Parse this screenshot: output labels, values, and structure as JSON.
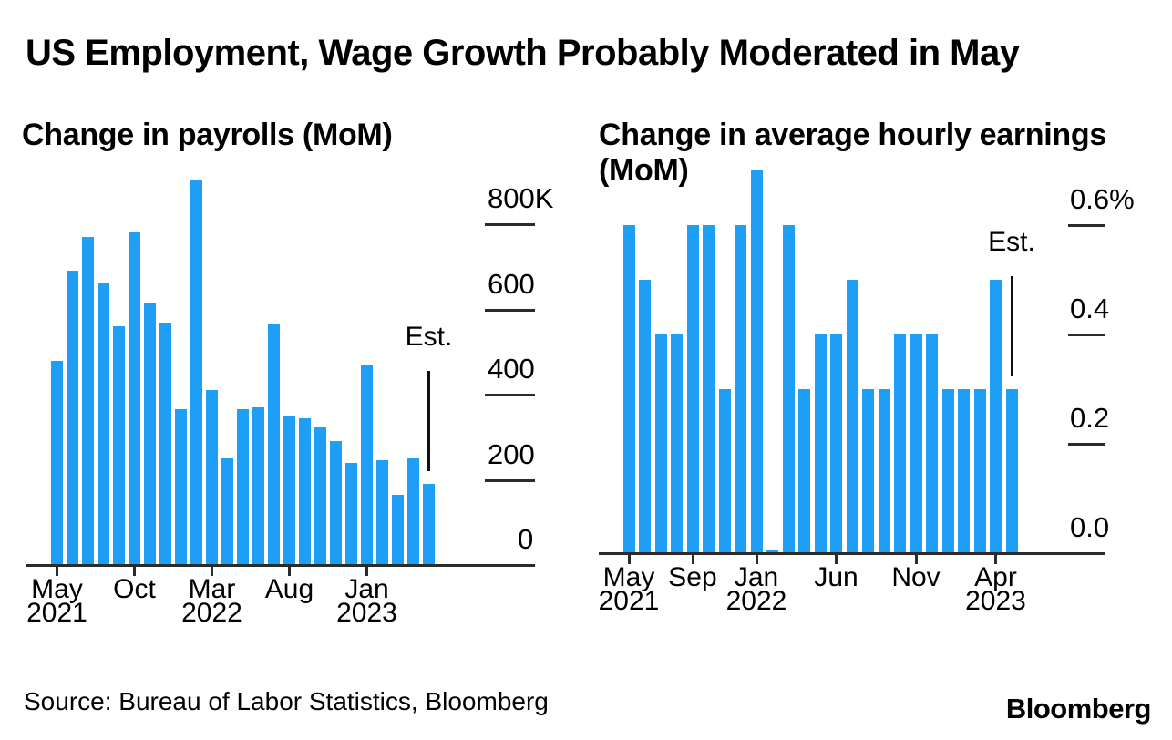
{
  "page": {
    "title": "US Employment, Wage Growth Probably Moderated in May",
    "source": "Source: Bureau of Labor Statistics, Bloomberg",
    "brand": "Bloomberg"
  },
  "colors": {
    "bar": "#1e9ef4",
    "axis": "#2b2b2b",
    "text": "#000000"
  },
  "chart_data": [
    {
      "type": "bar",
      "title": "Change in payrolls (MoM)",
      "unit": "thousands of jobs",
      "ylabel": "",
      "xlabel": "",
      "ylim": [
        0,
        800
      ],
      "grid": false,
      "legend_position": "none",
      "est_label": "Est.",
      "est_index": 24,
      "categories": [
        "May 2021",
        "Jun 2021",
        "Jul 2021",
        "Aug 2021",
        "Sep 2021",
        "Oct 2021",
        "Nov 2021",
        "Dec 2021",
        "Jan 2022",
        "Feb 2022",
        "Mar 2022",
        "Apr 2022",
        "May 2022",
        "Jun 2022",
        "Jul 2022",
        "Aug 2022",
        "Sep 2022",
        "Oct 2022",
        "Nov 2022",
        "Dec 2022",
        "Jan 2023",
        "Feb 2023",
        "Mar 2023",
        "Apr 2023",
        "May 2023"
      ],
      "values": [
        480,
        690,
        770,
        660,
        560,
        780,
        615,
        570,
        365,
        905,
        410,
        250,
        365,
        370,
        565,
        350,
        345,
        325,
        290,
        240,
        470,
        245,
        165,
        250,
        190
      ],
      "yticks": [
        {
          "value": 800,
          "label": "800K"
        },
        {
          "value": 600,
          "label": "600"
        },
        {
          "value": 400,
          "label": "400"
        },
        {
          "value": 200,
          "label": "200"
        },
        {
          "value": 0,
          "label": "0"
        }
      ],
      "xticks": [
        {
          "index": 0,
          "line1": "May",
          "line2": "2021"
        },
        {
          "index": 5,
          "line1": "Oct",
          "line2": ""
        },
        {
          "index": 10,
          "line1": "Mar",
          "line2": "2022"
        },
        {
          "index": 15,
          "line1": "Aug",
          "line2": ""
        },
        {
          "index": 20,
          "line1": "Jan",
          "line2": "2023"
        }
      ]
    },
    {
      "type": "bar",
      "title": "Change in average hourly earnings (MoM)",
      "unit": "percent",
      "ylabel": "",
      "xlabel": "",
      "ylim": [
        0,
        0.7
      ],
      "grid": false,
      "legend_position": "none",
      "est_label": "Est.",
      "est_index": 24,
      "categories": [
        "May 2021",
        "Jun 2021",
        "Jul 2021",
        "Aug 2021",
        "Sep 2021",
        "Oct 2021",
        "Nov 2021",
        "Dec 2021",
        "Jan 2022",
        "Feb 2022",
        "Mar 2022",
        "Apr 2022",
        "May 2022",
        "Jun 2022",
        "Jul 2022",
        "Aug 2022",
        "Sep 2022",
        "Oct 2022",
        "Nov 2022",
        "Dec 2022",
        "Jan 2023",
        "Feb 2023",
        "Mar 2023",
        "Apr 2023",
        "May 2023"
      ],
      "values": [
        0.6,
        0.5,
        0.4,
        0.4,
        0.6,
        0.6,
        0.3,
        0.6,
        0.7,
        0.0,
        0.6,
        0.3,
        0.4,
        0.4,
        0.5,
        0.3,
        0.3,
        0.4,
        0.4,
        0.4,
        0.3,
        0.3,
        0.3,
        0.5,
        0.3
      ],
      "yticks": [
        {
          "value": 0.6,
          "label": "0.6%"
        },
        {
          "value": 0.4,
          "label": "0.4"
        },
        {
          "value": 0.2,
          "label": "0.2"
        },
        {
          "value": 0.0,
          "label": "0.0"
        }
      ],
      "xticks": [
        {
          "index": 0,
          "line1": "May",
          "line2": "2021"
        },
        {
          "index": 4,
          "line1": "Sep",
          "line2": ""
        },
        {
          "index": 8,
          "line1": "Jan",
          "line2": "2022"
        },
        {
          "index": 13,
          "line1": "Jun",
          "line2": ""
        },
        {
          "index": 18,
          "line1": "Nov",
          "line2": ""
        },
        {
          "index": 23,
          "line1": "Apr",
          "line2": "2023"
        }
      ]
    }
  ]
}
